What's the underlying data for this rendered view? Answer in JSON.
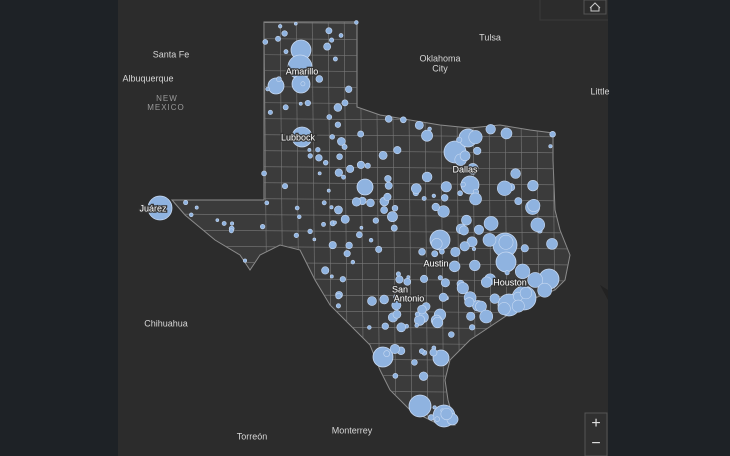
{
  "map": {
    "labels": [
      "Santa Fe",
      "Albuquerque",
      "NEW",
      "MEXICO",
      "Tulsa",
      "Oklahoma",
      "City",
      "Little",
      "Juárez",
      "Amarillo",
      "Lubbock",
      "Dallas",
      "Austin",
      "San",
      "Antonio",
      "Houston",
      "Chihuahua",
      "Torreón",
      "Monterrey"
    ],
    "controls": {
      "zoom_in": "+",
      "zoom_out": "−"
    }
  }
}
